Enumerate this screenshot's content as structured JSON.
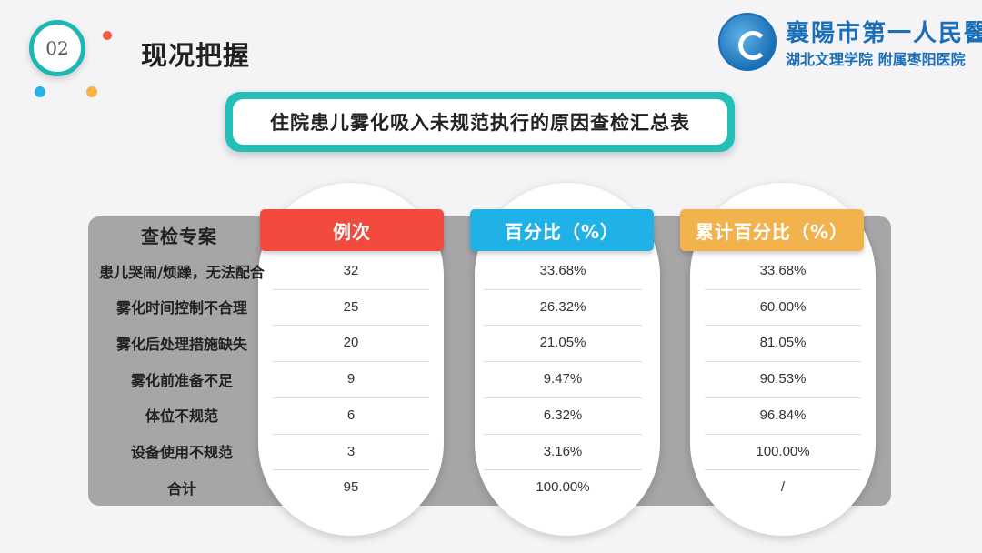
{
  "section": {
    "number": "02",
    "title": "现况把握"
  },
  "logo": {
    "line1": "襄陽市第一人民醫院",
    "line2": "湖北文理学院 附属枣阳医院"
  },
  "table": {
    "title": "住院患儿雾化吸入未规范执行的原因查检汇总表",
    "columns": [
      "查检专案",
      "例次",
      "百分比（%）",
      "累计百分比（%）"
    ],
    "rows": [
      [
        "患儿哭闹/烦躁，无法配合",
        "32",
        "33.68%",
        "33.68%"
      ],
      [
        "雾化时间控制不合理",
        "25",
        "26.32%",
        "60.00%"
      ],
      [
        "雾化后处理措施缺失",
        "20",
        "21.05%",
        "81.05%"
      ],
      [
        "雾化前准备不足",
        "9",
        "9.47%",
        "90.53%"
      ],
      [
        "体位不规范",
        "6",
        "6.32%",
        "96.84%"
      ],
      [
        "设备使用不规范",
        "3",
        "3.16%",
        "100.00%"
      ],
      [
        "合计",
        "95",
        "100.00%",
        "/"
      ]
    ]
  },
  "colors": {
    "accent": "#22bfb9",
    "header_red": "#f24a3c",
    "header_blue": "#20b2e6",
    "header_orange": "#f2b24e",
    "panel_gray": "#a6a6a8"
  }
}
